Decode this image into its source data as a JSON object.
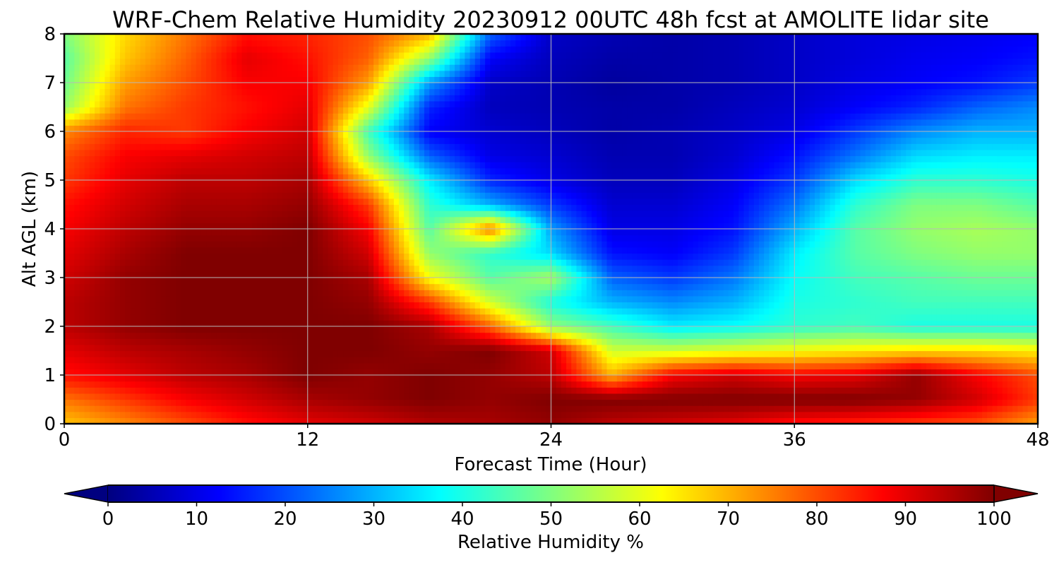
{
  "chart_data": {
    "type": "heatmap",
    "title": "WRF-Chem Relative Humidity 20230912 00UTC 48h fcst at AMOLITE lidar site",
    "xlabel": "Forecast Time (Hour)",
    "ylabel": "Alt AGL (km)",
    "xlim": [
      0,
      48
    ],
    "ylim": [
      0,
      8
    ],
    "x_ticks": [
      0,
      12,
      24,
      36,
      48
    ],
    "y_ticks": [
      0,
      1,
      2,
      3,
      4,
      5,
      6,
      7,
      8
    ],
    "grid": true,
    "colormap": "jet",
    "colorbar": {
      "label": "Relative Humidity %",
      "min": 0,
      "max": 100,
      "ticks": [
        0,
        10,
        20,
        30,
        40,
        50,
        60,
        70,
        80,
        90,
        100
      ],
      "extend": "both",
      "orientation": "horizontal"
    },
    "x": [
      0,
      3,
      6,
      9,
      12,
      15,
      18,
      21,
      24,
      27,
      30,
      33,
      36,
      39,
      42,
      45,
      48
    ],
    "y": [
      0,
      0.5,
      1,
      1.5,
      2,
      2.5,
      3,
      3.5,
      4,
      4.5,
      5,
      5.5,
      6,
      6.5,
      7,
      7.5,
      8
    ],
    "z": [
      [
        68,
        74,
        80,
        86,
        90,
        92,
        95,
        96,
        98,
        94,
        92,
        90,
        86,
        84,
        82,
        80,
        72
      ],
      [
        76,
        82,
        88,
        92,
        96,
        98,
        100,
        98,
        100,
        100,
        100,
        100,
        100,
        100,
        98,
        92,
        82
      ],
      [
        86,
        90,
        94,
        96,
        100,
        98,
        100,
        98,
        94,
        70,
        88,
        92,
        88,
        90,
        98,
        88,
        80
      ],
      [
        90,
        94,
        96,
        98,
        100,
        100,
        98,
        100,
        92,
        58,
        58,
        60,
        62,
        64,
        66,
        66,
        64
      ],
      [
        94,
        98,
        100,
        100,
        100,
        100,
        96,
        78,
        52,
        44,
        36,
        38,
        42,
        44,
        40,
        40,
        40
      ],
      [
        94,
        98,
        100,
        100,
        100,
        98,
        82,
        58,
        40,
        30,
        26,
        30,
        40,
        42,
        44,
        44,
        44
      ],
      [
        92,
        98,
        100,
        100,
        100,
        96,
        62,
        46,
        54,
        22,
        18,
        24,
        38,
        44,
        46,
        48,
        48
      ],
      [
        90,
        96,
        100,
        100,
        100,
        92,
        52,
        42,
        34,
        14,
        12,
        18,
        36,
        46,
        50,
        52,
        52
      ],
      [
        88,
        94,
        98,
        98,
        100,
        88,
        46,
        76,
        28,
        10,
        10,
        14,
        30,
        46,
        52,
        54,
        52
      ],
      [
        86,
        92,
        96,
        96,
        98,
        82,
        42,
        30,
        18,
        8,
        8,
        12,
        24,
        42,
        50,
        50,
        46
      ],
      [
        82,
        90,
        94,
        94,
        96,
        68,
        36,
        16,
        10,
        6,
        6,
        10,
        18,
        34,
        42,
        42,
        40
      ],
      [
        80,
        88,
        90,
        92,
        94,
        52,
        22,
        10,
        8,
        5,
        5,
        8,
        14,
        24,
        34,
        36,
        36
      ],
      [
        74,
        84,
        82,
        88,
        92,
        44,
        12,
        8,
        6,
        4,
        5,
        7,
        10,
        18,
        26,
        30,
        30
      ],
      [
        52,
        76,
        82,
        86,
        90,
        60,
        16,
        6,
        5,
        4,
        4,
        6,
        8,
        12,
        16,
        22,
        26
      ],
      [
        48,
        72,
        80,
        88,
        88,
        72,
        28,
        7,
        5,
        3,
        4,
        5,
        7,
        10,
        12,
        14,
        18
      ],
      [
        46,
        68,
        78,
        90,
        86,
        78,
        52,
        12,
        6,
        4,
        4,
        5,
        7,
        9,
        11,
        12,
        14
      ],
      [
        50,
        66,
        76,
        86,
        84,
        80,
        70,
        22,
        7,
        5,
        4,
        5,
        7,
        9,
        10,
        11,
        12
      ]
    ]
  }
}
